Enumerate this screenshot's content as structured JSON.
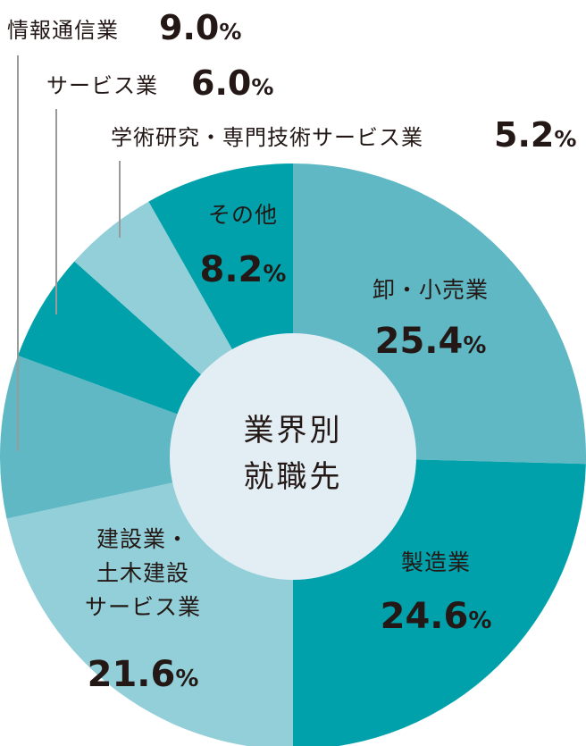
{
  "chart_data": {
    "type": "pie",
    "center_label": [
      "業界別",
      "就職先"
    ],
    "unit": "%",
    "slices": [
      {
        "name": [
          "卸・小売業"
        ],
        "value": 25.4,
        "color": "#5fb8c3"
      },
      {
        "name": [
          "製造業"
        ],
        "value": 24.6,
        "color": "#00a1ab"
      },
      {
        "name": [
          "建設業・",
          "土木建設",
          "サービス業"
        ],
        "value": 21.6,
        "color": "#92cfd8"
      },
      {
        "name": [
          "情報通信業"
        ],
        "value": 9.0,
        "color": "#5fb8c3"
      },
      {
        "name": [
          "サービス業"
        ],
        "value": 6.0,
        "color": "#00a1ab"
      },
      {
        "name": [
          "学術研究・専門技術サービス業"
        ],
        "value": 5.2,
        "color": "#92cfd8"
      },
      {
        "name": [
          "その他"
        ],
        "value": 8.2,
        "color": "#00a1ab"
      }
    ],
    "center_color": "#e3eef4"
  }
}
